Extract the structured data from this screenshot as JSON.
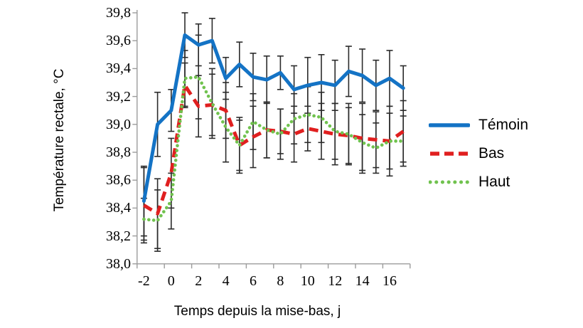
{
  "chart_data": {
    "type": "line",
    "title": "",
    "xlabel": "Temps depuis la mise-bas, j",
    "ylabel": "Température rectale, °C",
    "x": [
      -2,
      -1,
      0,
      1,
      2,
      3,
      4,
      5,
      6,
      7,
      8,
      9,
      10,
      11,
      12,
      13,
      14,
      15,
      16,
      17
    ],
    "x_tick_values": [
      -2,
      0,
      2,
      4,
      6,
      8,
      10,
      12,
      14,
      16
    ],
    "x_tick_labels": [
      "-2",
      "0",
      "2",
      "4",
      "6",
      "8",
      "10",
      "12",
      "14",
      "16"
    ],
    "y_tick_values": [
      39.8,
      39.6,
      39.4,
      39.2,
      39.0,
      38.8,
      38.6,
      38.4,
      38.2,
      38.0
    ],
    "y_tick_labels": [
      "39,8",
      "39,6",
      "39,4",
      "39,2",
      "39,0",
      "38,8",
      "38,6",
      "38,4",
      "38,2",
      "38,0"
    ],
    "ylim": [
      38.0,
      39.8
    ],
    "grid": false,
    "legend_position": "right",
    "error_bars": true,
    "colors": {
      "axis": "#9B9B9B",
      "error_bar": "#2B2B2B",
      "text": "#000000"
    },
    "series": [
      {
        "name": "Témoin",
        "color": "#1473C5",
        "style": "solid",
        "values": [
          38.45,
          39.0,
          39.1,
          39.64,
          39.57,
          39.6,
          39.33,
          39.43,
          39.34,
          39.32,
          39.37,
          39.25,
          39.28,
          39.3,
          39.28,
          39.38,
          39.35,
          39.28,
          39.33,
          39.26
        ],
        "errors": [
          0.25,
          0.23,
          0.15,
          0.16,
          0.15,
          0.16,
          0.15,
          0.16,
          0.17,
          0.17,
          0.12,
          0.17,
          0.2,
          0.2,
          0.18,
          0.18,
          0.19,
          0.18,
          0.2,
          0.16
        ]
      },
      {
        "name": "Bas",
        "color": "#E01F1F",
        "style": "dashed",
        "values": [
          38.42,
          38.36,
          38.65,
          39.28,
          39.13,
          39.14,
          39.1,
          38.85,
          38.91,
          38.96,
          38.95,
          38.93,
          38.97,
          38.95,
          38.93,
          38.92,
          38.9,
          38.89,
          38.88,
          38.95
        ],
        "errors": [
          0.27,
          0.25,
          0.25,
          0.16,
          0.22,
          0.22,
          0.2,
          0.18,
          0.22,
          0.2,
          0.16,
          0.2,
          0.16,
          0.2,
          0.22,
          0.2,
          0.25,
          0.2,
          0.25,
          0.22
        ]
      },
      {
        "name": "Haut",
        "color": "#70C24E",
        "style": "dotted",
        "values": [
          38.32,
          38.31,
          38.45,
          39.33,
          39.34,
          39.15,
          38.98,
          38.85,
          39.02,
          38.96,
          38.93,
          39.04,
          39.07,
          39.05,
          38.95,
          38.93,
          38.87,
          38.83,
          38.88,
          38.88
        ],
        "errors": [
          0.15,
          0.22,
          0.2,
          0.2,
          0.3,
          0.25,
          0.25,
          0.2,
          0.2,
          0.2,
          0.18,
          0.18,
          0.2,
          0.18,
          0.2,
          0.22,
          0.2,
          0.18,
          0.2,
          0.18
        ]
      }
    ]
  }
}
